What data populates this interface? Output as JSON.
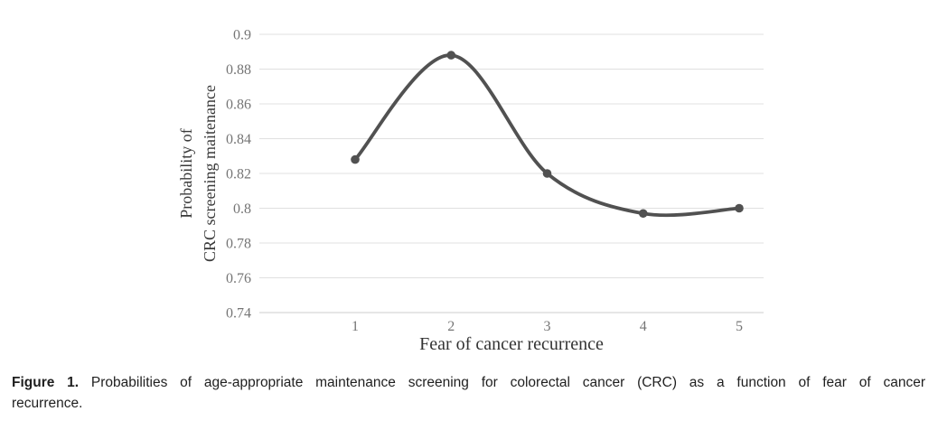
{
  "figure": {
    "caption": {
      "label": "Figure 1.",
      "line1": "Probabilities of age-appropriate maintenance screening for colorectal cancer (CRC) as a function of fear of cancer",
      "line2": "recurrence."
    }
  },
  "chart_data": {
    "type": "line",
    "x": [
      1,
      2,
      3,
      4,
      5
    ],
    "values": [
      0.828,
      0.888,
      0.82,
      0.797,
      0.8
    ],
    "xtick_labels": [
      "1",
      "2",
      "3",
      "4",
      "5"
    ],
    "yticks": [
      0.74,
      0.76,
      0.78,
      0.8,
      0.82,
      0.84,
      0.86,
      0.88,
      0.9
    ],
    "ytick_labels": [
      "0.74",
      "0.76",
      "0.78",
      "0.8",
      "0.82",
      "0.84",
      "0.86",
      "0.88",
      "0.9"
    ],
    "ylim": [
      0.74,
      0.9
    ],
    "xlabel": "Fear of cancer recurrence",
    "ylabel": "Probability of CRC screening maitenance",
    "ylabel_line1": "Probability of",
    "ylabel_line2": "CRC screening maitenance",
    "title": "",
    "legend": "none",
    "grid": "horizontal",
    "smooth": true,
    "marker": "circle",
    "line_color": "#515151",
    "marker_color": "#515151",
    "gridline_color": "#e0e0e0",
    "axisline_color": "#cccccc",
    "tick_color": "#757575"
  }
}
